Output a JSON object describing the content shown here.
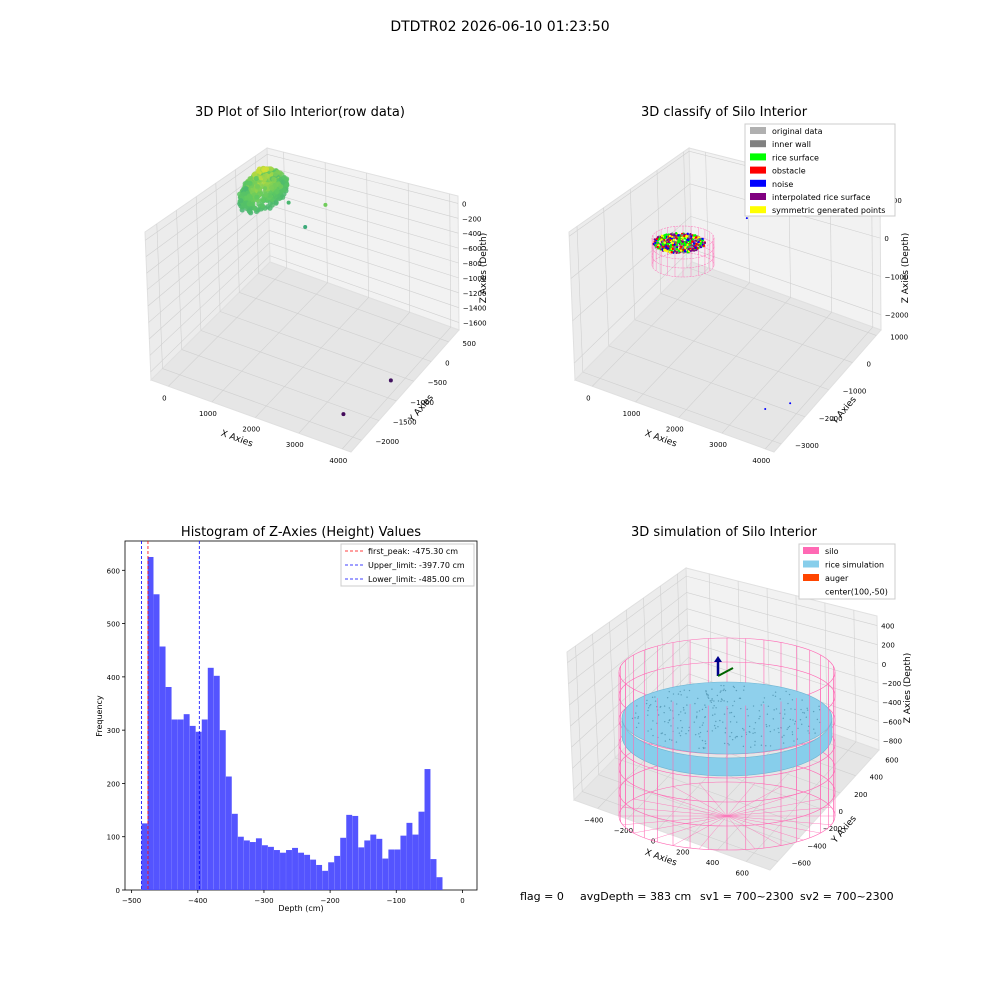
{
  "suptitle": "DTDTR02 2026-06-10 01:23:50",
  "footer": {
    "flag": "flag = 0",
    "avg_depth": "avgDepth = 383 cm",
    "sv1": "sv1 = 700~2300",
    "sv2": "sv2 = 700~2300"
  },
  "colors": {
    "hist_bar": "#4b4bff",
    "line_red": "#ff0000",
    "line_blue": "#0000ff",
    "pane": "#f2f2f2",
    "grid": "#d0d0d0",
    "silo": "#ff69b4",
    "rice_simulation": "#87ceeb",
    "auger": "#ff4500"
  },
  "chart_data": [
    {
      "type": "scatter",
      "variant": "3d",
      "title": "3D Plot of Silo Interior(row data)",
      "xlabel": "X Axies",
      "ylabel": "Y Axies",
      "zlabel": "Z Axies (Depth)",
      "x_ticks": [
        "0",
        "1000",
        "2000",
        "3000",
        "4000"
      ],
      "y_ticks": [
        "500",
        "0",
        "−500",
        "−1000",
        "−1500",
        "−2000"
      ],
      "z_ticks": [
        "0",
        "−200",
        "−400",
        "−600",
        "−800",
        "−1000",
        "−1200",
        "−1400",
        "−1600"
      ],
      "xlim": [
        -400,
        4200
      ],
      "ylim": [
        -2300,
        800
      ],
      "zlim": [
        -1700,
        100
      ],
      "point_cloud": {
        "x_range": [
          -100,
          700
        ],
        "y_range": [
          -500,
          400
        ],
        "z_range": [
          -480,
          0
        ],
        "colormap": "viridis"
      },
      "outliers": [
        {
          "x": 300,
          "y": 0,
          "z": -300
        },
        {
          "x": 650,
          "y": 200,
          "z": -500
        },
        {
          "x": 1200,
          "y": 0,
          "z": -600
        },
        {
          "x": 1600,
          "y": 100,
          "z": -300
        },
        {
          "x": 3800,
          "y": -800,
          "z": -1600
        },
        {
          "x": 3500,
          "y": -1700,
          "z": -1650
        }
      ]
    },
    {
      "type": "scatter",
      "variant": "3d",
      "title": "3D classify of Silo Interior",
      "xlabel": "X Axies",
      "ylabel": "Y Axies",
      "zlabel": "Z Axies (Depth)",
      "x_ticks": [
        "0",
        "1000",
        "2000",
        "3000",
        "4000"
      ],
      "y_ticks": [
        "1000",
        "0",
        "−1000",
        "−2000",
        "−3000"
      ],
      "z_ticks": [
        "1000",
        "0",
        "−1000",
        "−2000"
      ],
      "xlim": [
        -400,
        4200
      ],
      "ylim": [
        -3300,
        1200
      ],
      "zlim": [
        -2400,
        1100
      ],
      "legend_position": "upper-right",
      "legend": [
        {
          "label": "original data",
          "color": "#b0b0b0"
        },
        {
          "label": "inner wall",
          "color": "#808080"
        },
        {
          "label": "rice surface",
          "color": "#00ff00"
        },
        {
          "label": "obstacle",
          "color": "#ff0000"
        },
        {
          "label": "noise",
          "color": "#0000ff"
        },
        {
          "label": "interpolated rice surface",
          "color": "#800080"
        },
        {
          "label": "symmetric generated points",
          "color": "#ffff00"
        }
      ],
      "noise_points": [
        {
          "x": 3800,
          "y": -2000,
          "z": -2200
        },
        {
          "x": 3400,
          "y": -2300,
          "z": -2300
        },
        {
          "x": 1500,
          "y": 300,
          "z": -100
        }
      ]
    },
    {
      "type": "bar",
      "variant": "histogram",
      "title": "Histogram of Z-Axies (Height) Values",
      "xlabel": "Depth (cm)",
      "ylabel": "Frequency",
      "xlim": [
        -510,
        22
      ],
      "ylim": [
        0,
        655
      ],
      "x_ticks": [
        "−500",
        "−400",
        "−300",
        "−200",
        "−100",
        "0"
      ],
      "x_tick_values": [
        -500,
        -400,
        -300,
        -200,
        -100,
        0
      ],
      "y_ticks": [
        "0",
        "100",
        "200",
        "300",
        "400",
        "500",
        "600"
      ],
      "y_tick_values": [
        0,
        100,
        200,
        300,
        400,
        500,
        600
      ],
      "bin_start": -485,
      "bin_width": 9.1,
      "values": [
        125,
        625,
        555,
        457,
        381,
        320,
        320,
        330,
        308,
        297,
        320,
        417,
        402,
        300,
        213,
        143,
        100,
        93,
        90,
        97,
        84,
        81,
        75,
        70,
        75,
        79,
        70,
        66,
        57,
        47,
        36,
        52,
        64,
        98,
        141,
        139,
        80,
        93,
        104,
        96,
        59,
        76,
        76,
        102,
        126,
        104,
        147,
        227,
        58,
        24
      ],
      "vlines": [
        {
          "label": "first_peak: -475.30 cm",
          "x": -475.3,
          "color": "#ff0000"
        },
        {
          "label": "Upper_limit: -397.70 cm",
          "x": -397.7,
          "color": "#0000ff"
        },
        {
          "label": "Lower_limit: -485.00 cm",
          "x": -485.0,
          "color": "#0000ff"
        }
      ],
      "legend_position": "upper-right"
    },
    {
      "type": "scatter",
      "variant": "3d",
      "title": "3D simulation of Silo Interior",
      "xlabel": "X Axies",
      "ylabel": "Y Axies",
      "zlabel": "Z Axies (Depth)",
      "x_ticks": [
        "−400",
        "−200",
        "0",
        "200",
        "400",
        "600"
      ],
      "y_ticks": [
        "600",
        "400",
        "200",
        "0",
        "−200",
        "−400",
        "−600"
      ],
      "z_ticks": [
        "400",
        "200",
        "0",
        "−200",
        "−400",
        "−600",
        "−800"
      ],
      "xlim": [
        -560,
        760
      ],
      "ylim": [
        -700,
        700
      ],
      "zlim": [
        -900,
        500
      ],
      "silo": {
        "center_x": 100,
        "center_y": -50,
        "radius": 600,
        "z_top": 0,
        "z_bottom": -880
      },
      "rice_surface_z": -383,
      "legend_position": "upper-right",
      "legend": [
        {
          "label": "silo",
          "color": "#ff69b4"
        },
        {
          "label": "rice simulation",
          "color": "#87ceeb"
        },
        {
          "label": "auger",
          "color": "#ff4500"
        },
        {
          "label": "center(100,-50)",
          "color": ""
        }
      ]
    }
  ]
}
